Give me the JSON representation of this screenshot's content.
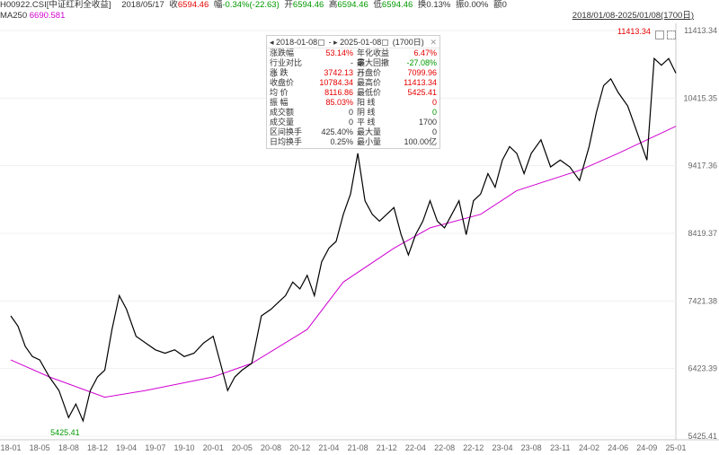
{
  "header": {
    "code": "H00922.CSI",
    "name": "[中证红利全收益]",
    "date": "2018/05/17",
    "close_label": "收",
    "close_value": "6594.46",
    "change_label": "幅",
    "change_value": "-0.34%(-22.63)",
    "open_label": "开",
    "open_value": "6594.46",
    "high_label": "高",
    "high_value": "6594.46",
    "low_label": "低",
    "low_value": "6594.46",
    "turnover_label": "换",
    "turnover_value": "0.13%",
    "amplitude_label": "振",
    "amplitude_value": "0.00%",
    "amount_label": "额",
    "amount_value": "0"
  },
  "ma": {
    "label": "MA250",
    "value": "6690.581"
  },
  "range_link": "2018/01/08-2025/01/08(1700日)",
  "tooltip": {
    "start": "2018-01-08",
    "sep": "-",
    "end": "2025-01-08",
    "days": "(1700日)",
    "close": "✕",
    "rows": [
      {
        "k1": "涨跌幅",
        "v1": "53.14%",
        "k2": "年化收益率",
        "v2": "6.47%",
        "v1c": "red",
        "v2c": "red"
      },
      {
        "k1": "行业对比",
        "v1": "-",
        "k2": "最大回撤",
        "v2": "-27.08%",
        "v1c": "",
        "v2c": "green",
        "q1": "?",
        "q2": "?"
      },
      {
        "k1": "涨  跌",
        "v1": "3742.13",
        "k2": "开盘价",
        "v2": "7099.96",
        "v1c": "red",
        "v2c": "red"
      },
      {
        "k1": "收盘价",
        "v1": "10784.34",
        "k2": "最高价",
        "v2": "11413.34",
        "v1c": "red",
        "v2c": "red"
      },
      {
        "k1": "均  价",
        "v1": "8116.86",
        "k2": "最低价",
        "v2": "5425.41",
        "v1c": "red",
        "v2c": "red"
      },
      {
        "k1": "振  幅",
        "v1": "85.03%",
        "k2": "阳  线",
        "v2": "0",
        "v1c": "red",
        "v2c": "red"
      },
      {
        "k1": "成交额",
        "v1": "0",
        "k2": "阴  线",
        "v2": "0",
        "v1c": "",
        "v2c": "green"
      },
      {
        "k1": "成交量",
        "v1": "0",
        "k2": "平  线",
        "v2": "1700",
        "v1c": "",
        "v2c": ""
      },
      {
        "k1": "区间换手",
        "v1": "425.40%",
        "k2": "最大量",
        "v2": "0",
        "v1c": "",
        "v2c": ""
      },
      {
        "k1": "日均换手",
        "v1": "0.25%",
        "k2": "最小量",
        "v2": "100.00亿",
        "v1c": "",
        "v2c": ""
      }
    ]
  },
  "chart_data": {
    "type": "line",
    "ylim": [
      5425.41,
      11413.34
    ],
    "y_ticks": [
      "11413.34",
      "10415.35",
      "9417.36",
      "8419.37",
      "7421.38",
      "6423.39",
      "5425.41"
    ],
    "x_ticks": [
      "18-01",
      "18-05",
      "18-08",
      "18-12",
      "19-04",
      "19-07",
      "19-10",
      "20-01",
      "20-05",
      "20-08",
      "20-12",
      "21-04",
      "21-08",
      "21-12",
      "22-04",
      "22-08",
      "22-12",
      "23-04",
      "23-08",
      "23-11",
      "24-02",
      "24-06",
      "24-09",
      "25-01"
    ],
    "annotations": {
      "max": "11413.34",
      "min": "5425.41"
    },
    "colors": {
      "price": "#000000",
      "ma": "#d100d1",
      "max_label": "#e60000",
      "min_label": "#009900",
      "axis_text": "#666666"
    },
    "series": [
      {
        "name": "price",
        "x": [
          "18-01",
          "18-02",
          "18-03",
          "18-04",
          "18-05",
          "18-06",
          "18-07",
          "18-08",
          "18-09",
          "18-10",
          "18-11",
          "18-12",
          "19-01",
          "19-02",
          "19-03",
          "19-04",
          "19-05",
          "19-06",
          "19-07",
          "19-08",
          "19-09",
          "19-10",
          "19-11",
          "19-12",
          "20-01",
          "20-02",
          "20-03",
          "20-04",
          "20-05",
          "20-06",
          "20-07",
          "20-08",
          "20-09",
          "20-10",
          "20-11",
          "20-12",
          "21-01",
          "21-02",
          "21-03",
          "21-04",
          "21-05",
          "21-06",
          "21-07",
          "21-08",
          "21-09",
          "21-10",
          "21-11",
          "21-12",
          "22-01",
          "22-02",
          "22-03",
          "22-04",
          "22-05",
          "22-06",
          "22-07",
          "22-08",
          "22-09",
          "22-10",
          "22-11",
          "22-12",
          "23-01",
          "23-02",
          "23-03",
          "23-04",
          "23-05",
          "23-06",
          "23-07",
          "23-08",
          "23-09",
          "23-10",
          "23-11",
          "23-12",
          "24-01",
          "24-02",
          "24-03",
          "24-04",
          "24-05",
          "24-06",
          "24-07",
          "24-08",
          "24-09",
          "24-10",
          "24-11",
          "24-12",
          "25-01"
        ],
        "values": [
          7200,
          7050,
          6750,
          6600,
          6550,
          6300,
          6100,
          5700,
          5900,
          5650,
          6100,
          6300,
          6400,
          7000,
          7500,
          7300,
          6900,
          6800,
          6700,
          6650,
          6700,
          6600,
          6650,
          6800,
          6900,
          6500,
          6100,
          6300,
          6400,
          6500,
          7200,
          7300,
          7400,
          7500,
          7700,
          7600,
          7800,
          7500,
          8000,
          8200,
          8300,
          8700,
          9000,
          9600,
          8900,
          8700,
          8600,
          8700,
          8800,
          8400,
          8100,
          8400,
          8600,
          8900,
          8600,
          8500,
          8700,
          8900,
          8400,
          8900,
          9000,
          9300,
          9100,
          9500,
          9700,
          9600,
          9300,
          9600,
          9800,
          9400,
          9500,
          9400,
          9200,
          9700,
          10200,
          10600,
          10700,
          10500,
          10300,
          9900,
          9500,
          11000,
          10900,
          11000,
          10784.34
        ]
      },
      {
        "name": "MA250",
        "x": [
          "18-01",
          "18-06",
          "19-01",
          "19-06",
          "20-01",
          "20-06",
          "21-01",
          "21-06",
          "22-01",
          "22-06",
          "23-01",
          "23-06",
          "24-01",
          "24-06",
          "25-01"
        ],
        "values": [
          6550,
          6300,
          6000,
          6100,
          6300,
          6500,
          7000,
          7700,
          8200,
          8500,
          8700,
          9050,
          9350,
          9600,
          10000
        ]
      }
    ]
  }
}
